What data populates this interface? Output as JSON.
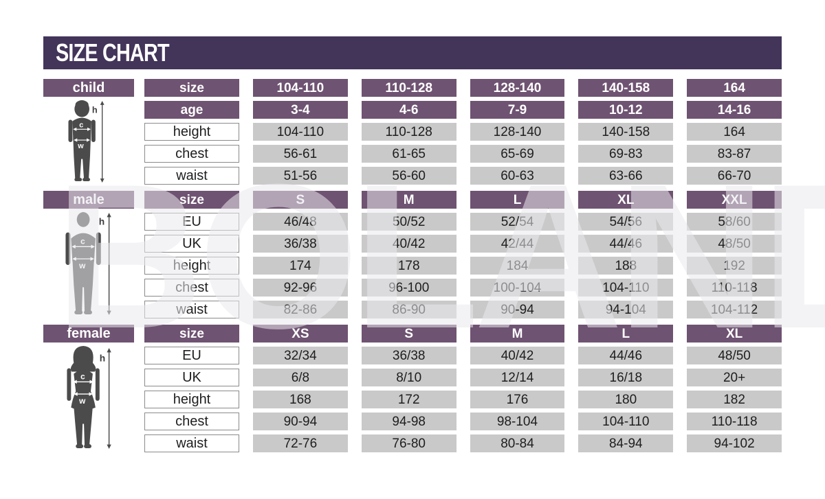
{
  "title": "SIZE CHART",
  "watermark": "BOLAND",
  "colors": {
    "title_bar": "#43345a",
    "header_purple": "#6f5372",
    "data_cell_gray": "#c9c9c9",
    "label_cell_border": "#8a8a8a",
    "silhouette_gray": "#4b4b4b"
  },
  "measure_labels": {
    "height": "h",
    "chest": "c",
    "waist": "w"
  },
  "chart_data": {
    "type": "table",
    "title": "SIZE CHART",
    "tables": [
      {
        "group": "child",
        "rows": [
          {
            "label": "size",
            "style": "header",
            "values": [
              "104-110",
              "110-128",
              "128-140",
              "140-158",
              "164"
            ]
          },
          {
            "label": "age",
            "style": "header",
            "values": [
              "3-4",
              "4-6",
              "7-9",
              "10-12",
              "14-16"
            ]
          },
          {
            "label": "height",
            "style": "data",
            "values": [
              "104-110",
              "110-128",
              "128-140",
              "140-158",
              "164"
            ]
          },
          {
            "label": "chest",
            "style": "data",
            "values": [
              "56-61",
              "61-65",
              "65-69",
              "69-83",
              "83-87"
            ]
          },
          {
            "label": "waist",
            "style": "data",
            "values": [
              "51-56",
              "56-60",
              "60-63",
              "63-66",
              "66-70"
            ]
          }
        ]
      },
      {
        "group": "male",
        "rows": [
          {
            "label": "size",
            "style": "header",
            "values": [
              "S",
              "M",
              "L",
              "XL",
              "XXL"
            ]
          },
          {
            "label": "EU",
            "style": "data",
            "values": [
              "46/48",
              "50/52",
              "52/54",
              "54/56",
              "58/60"
            ]
          },
          {
            "label": "UK",
            "style": "data",
            "values": [
              "36/38",
              "40/42",
              "42/44",
              "44/46",
              "48/50"
            ]
          },
          {
            "label": "height",
            "style": "data",
            "values": [
              "174",
              "178",
              "184",
              "188",
              "192"
            ]
          },
          {
            "label": "chest",
            "style": "data",
            "values": [
              "92-96",
              "96-100",
              "100-104",
              "104-110",
              "110-118"
            ]
          },
          {
            "label": "waist",
            "style": "data",
            "values": [
              "82-86",
              "86-90",
              "90-94",
              "94-104",
              "104-112"
            ]
          }
        ]
      },
      {
        "group": "female",
        "rows": [
          {
            "label": "size",
            "style": "header",
            "values": [
              "XS",
              "S",
              "M",
              "L",
              "XL"
            ]
          },
          {
            "label": "EU",
            "style": "data",
            "values": [
              "32/34",
              "36/38",
              "40/42",
              "44/46",
              "48/50"
            ]
          },
          {
            "label": "UK",
            "style": "data",
            "values": [
              "6/8",
              "8/10",
              "12/14",
              "16/18",
              "20+"
            ]
          },
          {
            "label": "height",
            "style": "data",
            "values": [
              "168",
              "172",
              "176",
              "180",
              "182"
            ]
          },
          {
            "label": "chest",
            "style": "data",
            "values": [
              "90-94",
              "94-98",
              "98-104",
              "104-110",
              "110-118"
            ]
          },
          {
            "label": "waist",
            "style": "data",
            "values": [
              "72-76",
              "76-80",
              "80-84",
              "84-94",
              "94-102"
            ]
          }
        ]
      }
    ]
  }
}
